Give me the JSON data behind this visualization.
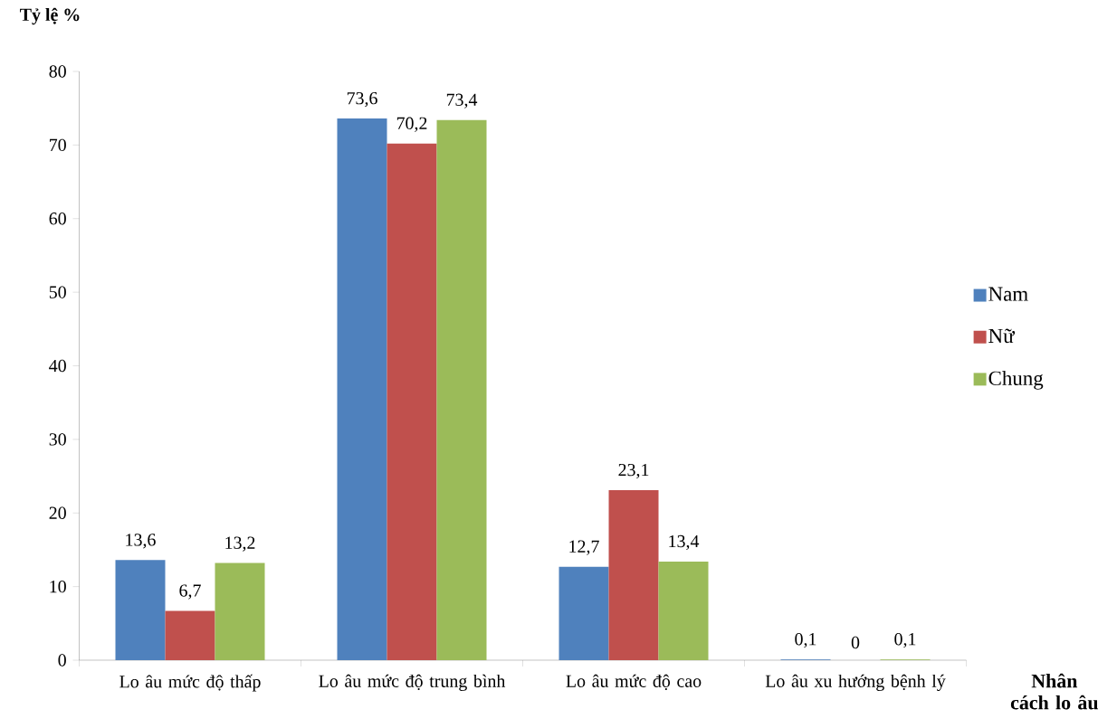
{
  "chart_data": {
    "type": "bar",
    "xlabel": "Nhân cách lo âu",
    "ylabel": "Tỷ lệ %",
    "categories": [
      "Lo âu mức độ thấp",
      "Lo âu mức độ trung bình",
      "Lo âu mức độ cao",
      "Lo âu xu hướng bệnh lý"
    ],
    "series": [
      {
        "name": "Nam",
        "color": "#4f81bd",
        "values": [
          13.6,
          73.6,
          12.7,
          0.1
        ],
        "value_labels": [
          "13,6",
          "73,6",
          "12,7",
          "0,1"
        ]
      },
      {
        "name": "Nữ",
        "color": "#c0504d",
        "values": [
          6.7,
          70.2,
          23.1,
          0
        ],
        "value_labels": [
          "6,7",
          "70,2",
          "23,1",
          "0"
        ]
      },
      {
        "name": "Chung",
        "color": "#9bbb59",
        "values": [
          13.2,
          73.4,
          13.4,
          0.1
        ],
        "value_labels": [
          "13,2",
          "73,4",
          "13,4",
          "0,1"
        ]
      }
    ],
    "ylim": [
      0,
      80
    ],
    "yticks": [
      0,
      10,
      20,
      30,
      40,
      50,
      60,
      70,
      80
    ],
    "grid": false,
    "legend": "right"
  }
}
